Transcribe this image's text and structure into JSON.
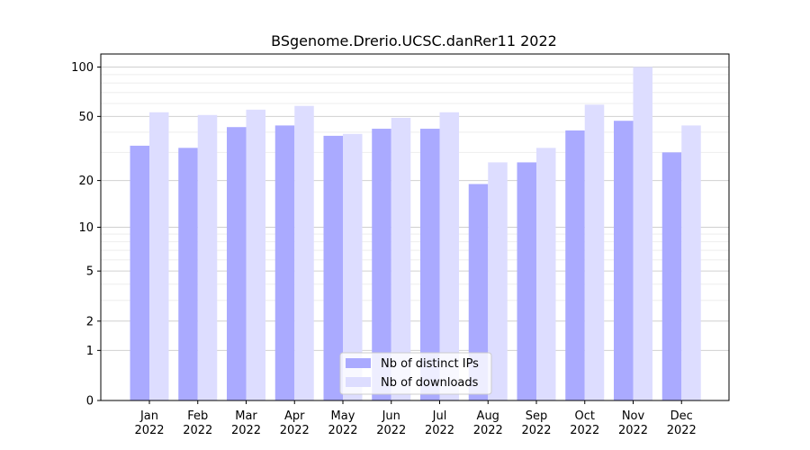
{
  "chart_data": {
    "type": "bar",
    "title": "BSgenome.Drerio.UCSC.danRer11 2022",
    "xlabel": "",
    "ylabel": "",
    "y_scale": "log1p",
    "ylim": [
      0,
      120
    ],
    "y_ticks": [
      0,
      1,
      2,
      5,
      10,
      20,
      50,
      100
    ],
    "y_tick_labels": [
      "0",
      "1",
      "2",
      "5",
      "10",
      "20",
      "50",
      "100"
    ],
    "categories": [
      "Jan\n2022",
      "Feb\n2022",
      "Mar\n2022",
      "Apr\n2022",
      "May\n2022",
      "Jun\n2022",
      "Jul\n2022",
      "Aug\n2022",
      "Sep\n2022",
      "Oct\n2022",
      "Nov\n2022",
      "Dec\n2022"
    ],
    "category_lines": [
      [
        "Jan",
        "2022"
      ],
      [
        "Feb",
        "2022"
      ],
      [
        "Mar",
        "2022"
      ],
      [
        "Apr",
        "2022"
      ],
      [
        "May",
        "2022"
      ],
      [
        "Jun",
        "2022"
      ],
      [
        "Jul",
        "2022"
      ],
      [
        "Aug",
        "2022"
      ],
      [
        "Sep",
        "2022"
      ],
      [
        "Oct",
        "2022"
      ],
      [
        "Nov",
        "2022"
      ],
      [
        "Dec",
        "2022"
      ]
    ],
    "series": [
      {
        "name": "Nb of distinct IPs",
        "color": "#aaaaff",
        "values": [
          33,
          32,
          43,
          44,
          38,
          42,
          42,
          19,
          26,
          41,
          47,
          30
        ]
      },
      {
        "name": "Nb of downloads",
        "color": "#ddddff",
        "values": [
          53,
          51,
          55,
          58,
          39,
          49,
          53,
          26,
          32,
          59,
          100,
          44
        ]
      }
    ],
    "legend_position": "lower-center",
    "grid": true
  }
}
